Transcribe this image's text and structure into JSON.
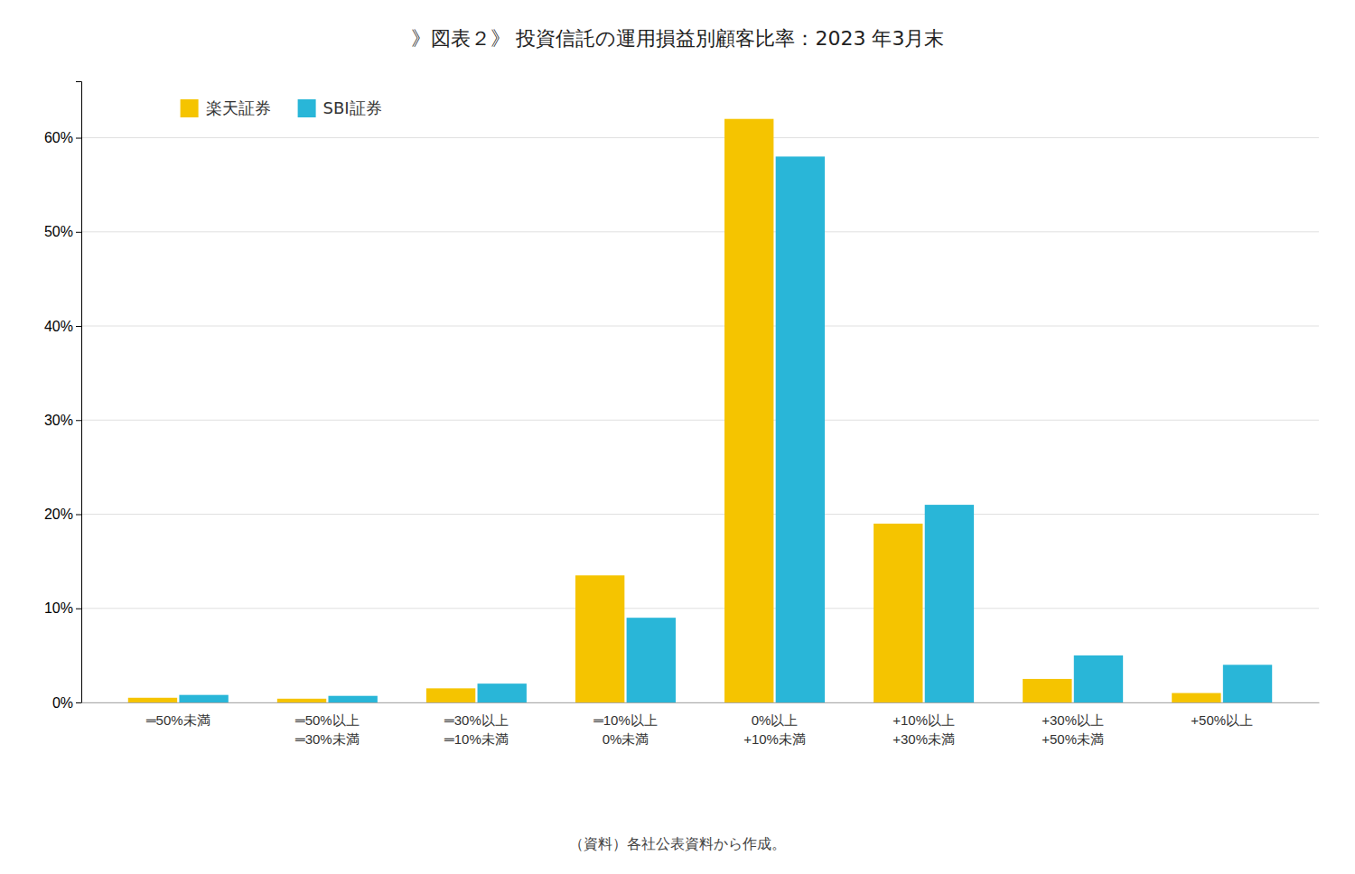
{
  "chart_data": {
    "type": "bar",
    "title": "》図表２》 投資信託の運用損益別顧客比率：2023 年3月末",
    "categories": [
      "═50%未満",
      "═50%以上\n═30%未満",
      "═30%以上\n═10%未満",
      "═10%以上\n0%未満",
      "0%以上\n+10%未満",
      "+10%以上\n+30%未満",
      "+30%以上\n+50%未満",
      "+50%以上"
    ],
    "series": [
      {
        "name": "楽天証券",
        "color": "#F5C400",
        "values": [
          0.5,
          0.4,
          1.5,
          13.5,
          62.0,
          19.0,
          2.5,
          1.0
        ]
      },
      {
        "name": "SBI証券",
        "color": "#29B6D8",
        "values": [
          0.8,
          0.7,
          2.0,
          9.0,
          58.0,
          21.0,
          5.0,
          4.0
        ]
      }
    ],
    "ylim": [
      0,
      66
    ],
    "yticks": [
      {
        "value": 0,
        "label": "0%"
      },
      {
        "value": 10,
        "label": "10%"
      },
      {
        "value": 20,
        "label": "20%"
      },
      {
        "value": 30,
        "label": "30%"
      },
      {
        "value": 40,
        "label": "40%"
      },
      {
        "value": 50,
        "label": "50%"
      },
      {
        "value": 60,
        "label": "60%"
      }
    ],
    "grid": true,
    "legend": "upper left",
    "footnote": "（資料）各社公表資料から作成。"
  }
}
